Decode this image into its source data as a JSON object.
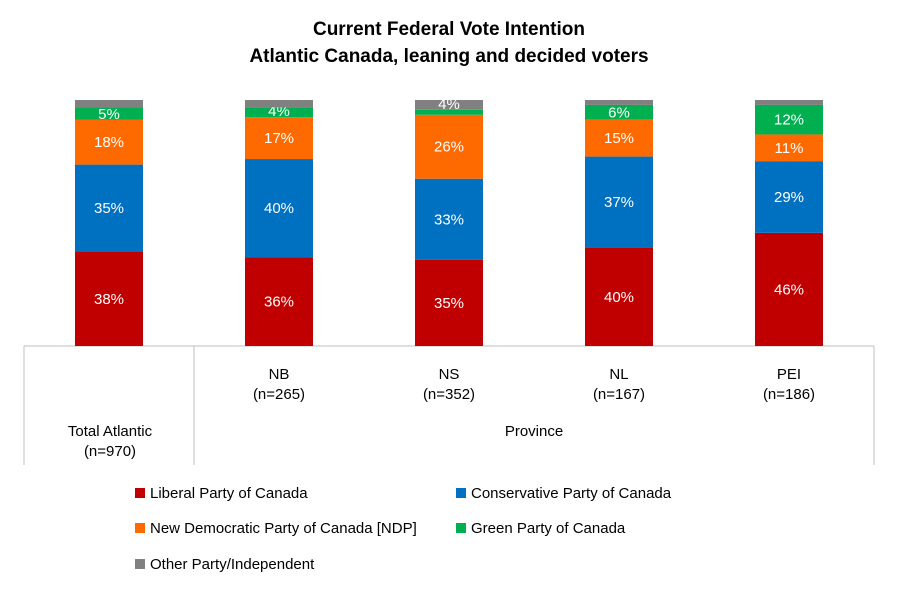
{
  "chart_data": {
    "type": "bar",
    "stacked": true,
    "percent": true,
    "title": "Current Federal Vote Intention",
    "subtitle": "Atlantic Canada, leaning and decided voters",
    "categories": [
      {
        "name": "Total Atlantic",
        "n": "(n=970)"
      },
      {
        "name": "NB",
        "n": "(n=265)"
      },
      {
        "name": "NS",
        "n": "(n=352)"
      },
      {
        "name": "NL",
        "n": "(n=167)"
      },
      {
        "name": "PEI",
        "n": "(n=186)"
      }
    ],
    "group_label": "Province",
    "series": [
      {
        "name": "Liberal Party of Canada",
        "color": "#C00000",
        "values": [
          38,
          36,
          35,
          40,
          46
        ],
        "labels": [
          "38%",
          "36%",
          "35%",
          "40%",
          "46%"
        ]
      },
      {
        "name": "Conservative Party of Canada",
        "color": "#0070C0",
        "values": [
          35,
          40,
          33,
          37,
          29
        ],
        "labels": [
          "35%",
          "40%",
          "33%",
          "37%",
          "29%"
        ]
      },
      {
        "name": "New Democratic Party of Canada [NDP]",
        "color": "#FF6A00",
        "values": [
          18,
          17,
          26,
          15,
          11
        ],
        "labels": [
          "18%",
          "17%",
          "26%",
          "15%",
          "11%"
        ]
      },
      {
        "name": "Green Party of Canada",
        "color": "#00B050",
        "values": [
          5,
          4,
          2,
          6,
          12
        ],
        "labels": [
          "5%",
          "4%",
          "",
          "6%",
          "12%"
        ]
      },
      {
        "name": "Other Party/Independent",
        "color": "#808080",
        "values": [
          3,
          3,
          4,
          2,
          2
        ],
        "labels": [
          "",
          "",
          "4%",
          "",
          ""
        ]
      }
    ],
    "ylim": [
      0,
      100
    ],
    "legend_position": "bottom"
  }
}
